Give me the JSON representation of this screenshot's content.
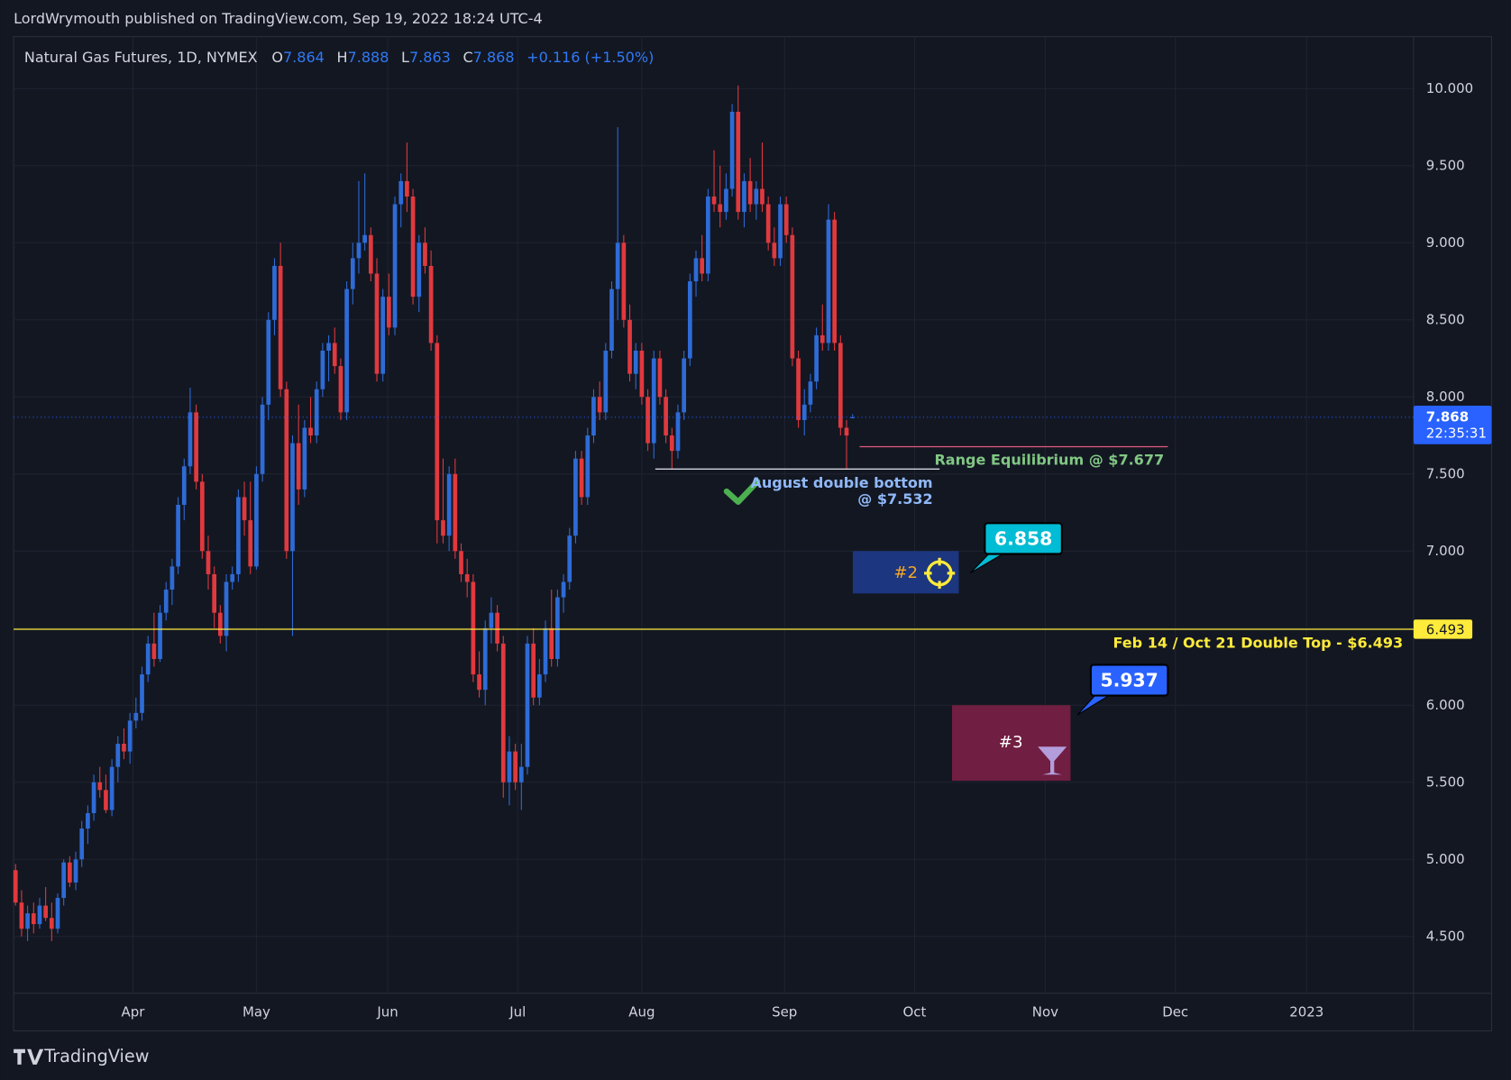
{
  "header": {
    "publisher": "LordWrymouth published on TradingView.com, Sep 19, 2022 18:24 UTC-4"
  },
  "footer": {
    "brand": "TradingView"
  },
  "chart_data": {
    "type": "candlestick",
    "title": "Natural Gas Futures, 1D, NYMEX",
    "ohlc_labels": {
      "open": "O",
      "high": "H",
      "low": "L",
      "close": "C"
    },
    "last": {
      "open": 7.864,
      "high": 7.888,
      "low": 7.863,
      "close": 7.868,
      "change": "+0.116 (+1.50%)"
    },
    "countdown": "22:35:31",
    "up_color": "#2e6bd6",
    "down_color": "#e0393e",
    "candles": [
      [
        4.93,
        4.97,
        4.7,
        4.72
      ],
      [
        4.72,
        4.8,
        4.5,
        4.55
      ],
      [
        4.55,
        4.7,
        4.47,
        4.65
      ],
      [
        4.65,
        4.72,
        4.52,
        4.58
      ],
      [
        4.58,
        4.75,
        4.55,
        4.7
      ],
      [
        4.7,
        4.82,
        4.6,
        4.62
      ],
      [
        4.62,
        4.72,
        4.47,
        4.55
      ],
      [
        4.55,
        4.78,
        4.52,
        4.75
      ],
      [
        4.75,
        5.0,
        4.7,
        4.98
      ],
      [
        4.98,
        5.02,
        4.82,
        4.85
      ],
      [
        4.85,
        5.05,
        4.8,
        5.0
      ],
      [
        5.0,
        5.25,
        4.95,
        5.2
      ],
      [
        5.2,
        5.35,
        5.1,
        5.3
      ],
      [
        5.3,
        5.55,
        5.25,
        5.5
      ],
      [
        5.5,
        5.6,
        5.4,
        5.45
      ],
      [
        5.45,
        5.55,
        5.3,
        5.32
      ],
      [
        5.32,
        5.65,
        5.28,
        5.6
      ],
      [
        5.6,
        5.8,
        5.5,
        5.75
      ],
      [
        5.75,
        5.85,
        5.65,
        5.7
      ],
      [
        5.7,
        5.95,
        5.62,
        5.9
      ],
      [
        5.9,
        6.05,
        5.85,
        5.95
      ],
      [
        5.95,
        6.25,
        5.9,
        6.2
      ],
      [
        6.2,
        6.45,
        6.15,
        6.4
      ],
      [
        6.4,
        6.6,
        6.25,
        6.3
      ],
      [
        6.3,
        6.65,
        6.28,
        6.6
      ],
      [
        6.6,
        6.8,
        6.55,
        6.75
      ],
      [
        6.75,
        6.95,
        6.65,
        6.9
      ],
      [
        6.9,
        7.35,
        6.85,
        7.3
      ],
      [
        7.3,
        7.6,
        7.2,
        7.55
      ],
      [
        7.55,
        8.06,
        7.5,
        7.9
      ],
      [
        7.9,
        7.95,
        7.4,
        7.45
      ],
      [
        7.45,
        7.5,
        6.95,
        7.0
      ],
      [
        7.0,
        7.1,
        6.75,
        6.85
      ],
      [
        6.85,
        6.9,
        6.5,
        6.6
      ],
      [
        6.6,
        6.65,
        6.4,
        6.45
      ],
      [
        6.45,
        6.85,
        6.35,
        6.8
      ],
      [
        6.8,
        6.9,
        6.75,
        6.85
      ],
      [
        6.85,
        7.4,
        6.8,
        7.35
      ],
      [
        7.35,
        7.45,
        7.1,
        7.2
      ],
      [
        7.2,
        7.45,
        6.85,
        6.9
      ],
      [
        6.9,
        7.55,
        6.88,
        7.5
      ],
      [
        7.5,
        8.0,
        7.45,
        7.95
      ],
      [
        7.95,
        8.55,
        7.85,
        8.5
      ],
      [
        8.5,
        8.9,
        8.4,
        8.85
      ],
      [
        8.85,
        9.0,
        8.0,
        8.05
      ],
      [
        8.05,
        8.1,
        6.95,
        7.0
      ],
      [
        7.0,
        7.75,
        6.45,
        7.7
      ],
      [
        7.7,
        7.95,
        7.3,
        7.4
      ],
      [
        7.4,
        7.85,
        7.35,
        7.8
      ],
      [
        7.8,
        8.0,
        7.7,
        7.75
      ],
      [
        7.75,
        8.1,
        7.7,
        8.05
      ],
      [
        8.05,
        8.35,
        8.0,
        8.3
      ],
      [
        8.3,
        8.4,
        8.1,
        8.35
      ],
      [
        8.35,
        8.45,
        8.15,
        8.2
      ],
      [
        8.2,
        8.25,
        7.85,
        7.9
      ],
      [
        7.9,
        8.75,
        7.85,
        8.7
      ],
      [
        8.7,
        9.0,
        8.6,
        8.9
      ],
      [
        8.9,
        9.4,
        8.8,
        9.0
      ],
      [
        9.0,
        9.45,
        8.95,
        9.05
      ],
      [
        9.05,
        9.1,
        8.75,
        8.8
      ],
      [
        8.8,
        8.9,
        8.1,
        8.15
      ],
      [
        8.15,
        8.7,
        8.1,
        8.65
      ],
      [
        8.65,
        8.8,
        8.4,
        8.45
      ],
      [
        8.45,
        9.3,
        8.4,
        9.25
      ],
      [
        9.25,
        9.45,
        9.1,
        9.4
      ],
      [
        9.4,
        9.65,
        9.2,
        9.3
      ],
      [
        9.3,
        9.35,
        8.6,
        8.65
      ],
      [
        8.65,
        9.05,
        8.55,
        9.0
      ],
      [
        9.0,
        9.1,
        8.8,
        8.85
      ],
      [
        8.85,
        8.95,
        8.3,
        8.35
      ],
      [
        8.35,
        8.4,
        7.05,
        7.2
      ],
      [
        7.2,
        7.6,
        7.05,
        7.1
      ],
      [
        7.1,
        7.55,
        7.0,
        7.5
      ],
      [
        7.5,
        7.6,
        6.95,
        7.0
      ],
      [
        7.0,
        7.05,
        6.8,
        6.85
      ],
      [
        6.85,
        6.95,
        6.7,
        6.8
      ],
      [
        6.8,
        6.85,
        6.15,
        6.2
      ],
      [
        6.2,
        6.35,
        6.05,
        6.1
      ],
      [
        6.1,
        6.55,
        6.0,
        6.5
      ],
      [
        6.5,
        6.7,
        6.4,
        6.6
      ],
      [
        6.6,
        6.65,
        6.35,
        6.4
      ],
      [
        6.4,
        6.45,
        5.4,
        5.5
      ],
      [
        5.5,
        5.8,
        5.35,
        5.7
      ],
      [
        5.7,
        5.75,
        5.45,
        5.5
      ],
      [
        5.5,
        5.75,
        5.32,
        5.6
      ],
      [
        5.6,
        6.45,
        5.55,
        6.4
      ],
      [
        6.4,
        6.5,
        6.0,
        6.05
      ],
      [
        6.05,
        6.3,
        6.0,
        6.2
      ],
      [
        6.2,
        6.55,
        6.15,
        6.5
      ],
      [
        6.5,
        6.75,
        6.25,
        6.3
      ],
      [
        6.3,
        6.75,
        6.25,
        6.7
      ],
      [
        6.7,
        6.85,
        6.6,
        6.8
      ],
      [
        6.8,
        7.15,
        6.75,
        7.1
      ],
      [
        7.1,
        7.65,
        7.05,
        7.6
      ],
      [
        7.6,
        7.65,
        7.3,
        7.35
      ],
      [
        7.35,
        7.8,
        7.3,
        7.75
      ],
      [
        7.75,
        8.05,
        7.7,
        8.0
      ],
      [
        8.0,
        8.1,
        7.85,
        7.9
      ],
      [
        7.9,
        8.35,
        7.85,
        8.3
      ],
      [
        8.3,
        8.75,
        8.25,
        8.7
      ],
      [
        8.7,
        9.75,
        8.5,
        9.0
      ],
      [
        9.0,
        9.05,
        8.45,
        8.5
      ],
      [
        8.5,
        8.6,
        8.1,
        8.15
      ],
      [
        8.15,
        8.35,
        8.05,
        8.3
      ],
      [
        8.3,
        8.35,
        7.95,
        8.0
      ],
      [
        8.0,
        8.05,
        7.65,
        7.7
      ],
      [
        7.7,
        8.3,
        7.6,
        8.25
      ],
      [
        8.25,
        8.3,
        7.95,
        8.0
      ],
      [
        8.0,
        8.05,
        7.7,
        7.75
      ],
      [
        7.75,
        7.8,
        7.53,
        7.65
      ],
      [
        7.65,
        7.95,
        7.6,
        7.9
      ],
      [
        7.9,
        8.3,
        7.85,
        8.25
      ],
      [
        8.25,
        8.8,
        8.2,
        8.75
      ],
      [
        8.75,
        8.95,
        8.65,
        8.9
      ],
      [
        8.9,
        9.05,
        8.75,
        8.8
      ],
      [
        8.8,
        9.35,
        8.75,
        9.3
      ],
      [
        9.3,
        9.6,
        9.2,
        9.25
      ],
      [
        9.25,
        9.5,
        9.1,
        9.2
      ],
      [
        9.2,
        9.45,
        9.15,
        9.35
      ],
      [
        9.35,
        9.9,
        9.3,
        9.85
      ],
      [
        9.85,
        10.02,
        9.15,
        9.2
      ],
      [
        9.2,
        9.45,
        9.1,
        9.4
      ],
      [
        9.4,
        9.55,
        9.2,
        9.25
      ],
      [
        9.25,
        9.4,
        9.15,
        9.35
      ],
      [
        9.35,
        9.65,
        9.2,
        9.25
      ],
      [
        9.25,
        9.3,
        8.95,
        9.0
      ],
      [
        9.0,
        9.1,
        8.85,
        8.9
      ],
      [
        8.9,
        9.3,
        8.85,
        9.25
      ],
      [
        9.25,
        9.3,
        9.0,
        9.05
      ],
      [
        9.05,
        9.1,
        8.2,
        8.25
      ],
      [
        8.25,
        8.3,
        7.8,
        7.85
      ],
      [
        7.85,
        8.05,
        7.75,
        7.95
      ],
      [
        7.95,
        8.15,
        7.9,
        8.1
      ],
      [
        8.1,
        8.45,
        8.05,
        8.4
      ],
      [
        8.4,
        8.6,
        8.3,
        8.35
      ],
      [
        8.35,
        9.25,
        8.3,
        9.15
      ],
      [
        9.15,
        9.2,
        8.3,
        8.35
      ],
      [
        8.35,
        8.4,
        7.75,
        7.8
      ],
      [
        7.8,
        7.85,
        7.53,
        7.75
      ],
      [
        7.864,
        7.888,
        7.863,
        7.868
      ]
    ],
    "xlim": [
      -0.32,
      232.16
    ],
    "xticks": [
      {
        "value": 19.5,
        "label": "Apr"
      },
      {
        "value": 40,
        "label": "May"
      },
      {
        "value": 61.8,
        "label": "Jun"
      },
      {
        "value": 83.4,
        "label": "Jul"
      },
      {
        "value": 104,
        "label": "Aug"
      },
      {
        "value": 127.7,
        "label": "Sep"
      },
      {
        "value": 149.3,
        "label": "Oct"
      },
      {
        "value": 171,
        "label": "Nov"
      },
      {
        "value": 192.6,
        "label": "Dec"
      },
      {
        "value": 214.4,
        "label": "2023"
      }
    ],
    "ylim": [
      4.1375,
      10.3375
    ],
    "yticks": [
      {
        "value": 4.5,
        "label": "4.500"
      },
      {
        "value": 5,
        "label": "5.000"
      },
      {
        "value": 5.5,
        "label": "5.500"
      },
      {
        "value": 6,
        "label": "6.000"
      },
      {
        "value": 6.5,
        "label": "6.500"
      },
      {
        "value": 7,
        "label": "7.000"
      },
      {
        "value": 7.5,
        "label": "7.500"
      },
      {
        "value": 8,
        "label": "8.000"
      },
      {
        "value": 8.5,
        "label": "8.500"
      },
      {
        "value": 9,
        "label": "9.000"
      },
      {
        "value": 9.5,
        "label": "9.500"
      },
      {
        "value": 10,
        "label": "10.000"
      }
    ],
    "grid": true,
    "levels": [
      {
        "value": 7.677,
        "label": [
          "Range Equilibrium @ $7.677"
        ],
        "line_color": "#e05a7d",
        "text_color": "#81c784"
      },
      {
        "value": 7.532,
        "label": [
          "August double bottom",
          "@ $7.532"
        ],
        "line_color": "#d1d4dc",
        "text_color": "#90b8f8"
      },
      {
        "value": 6.493,
        "label": [
          "Feb 14 / Oct 21 Double Top - $6.493"
        ],
        "line_color": "#ffeb3b",
        "text_color": "#ffeb3b"
      }
    ],
    "zones": [
      {
        "label": "#2",
        "top": 7.0,
        "bottom": 6.725,
        "color": "#1e3a8a",
        "label_color": "#f5a623",
        "target": 6.858,
        "target_color": "#00bcd4"
      },
      {
        "label": "#3",
        "top": 6.0,
        "bottom": 5.51,
        "color": "#7b1f45",
        "label_color": "#ffffff",
        "target": 5.937,
        "target_color": "#2962ff"
      }
    ]
  }
}
